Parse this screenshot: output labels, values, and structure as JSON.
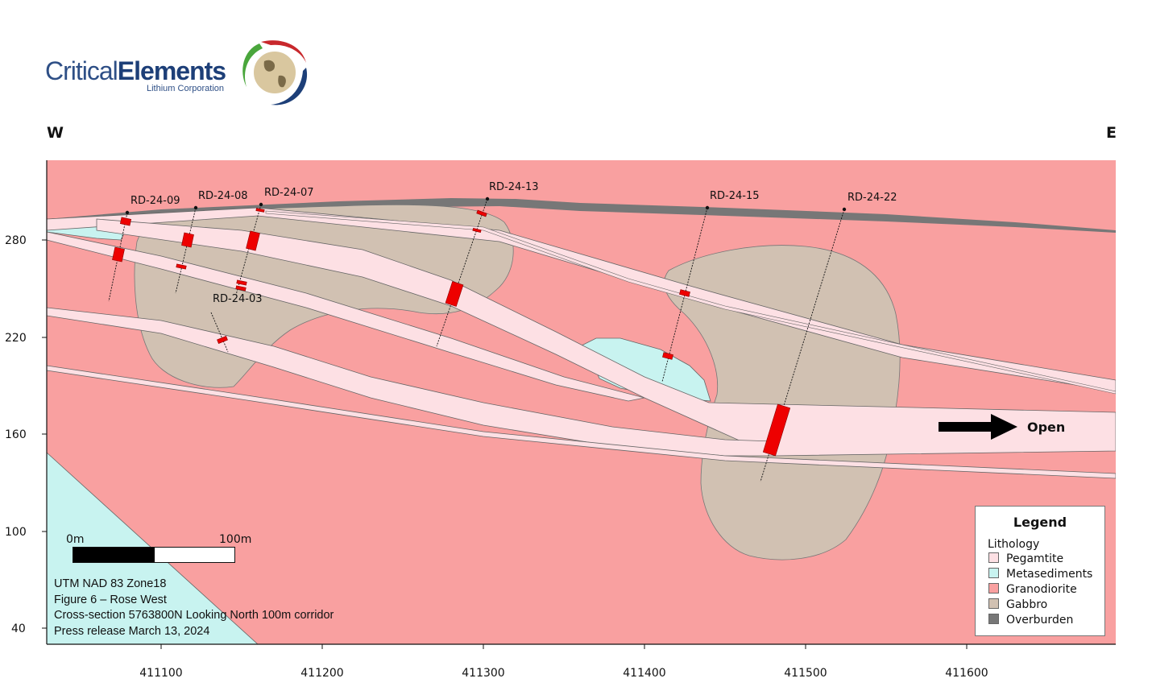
{
  "logo": {
    "word_regular": "Critical",
    "word_bold": "Elements",
    "subtitle": "Lithium Corporation"
  },
  "orientation": {
    "west": "W",
    "east": "E"
  },
  "y_axis": {
    "ticks": [
      "280",
      "220",
      "160",
      "100",
      "40"
    ]
  },
  "x_axis": {
    "ticks": [
      "411100",
      "411200",
      "411300",
      "411400",
      "411500",
      "411600"
    ]
  },
  "drillholes": [
    {
      "id": "RD-24-09"
    },
    {
      "id": "RD-24-08"
    },
    {
      "id": "RD-24-07"
    },
    {
      "id": "RD-24-13"
    },
    {
      "id": "RD-24-15"
    },
    {
      "id": "RD-24-22"
    },
    {
      "id": "RD-24-03"
    }
  ],
  "open_label": "Open",
  "scale_bar": {
    "start": "0m",
    "end": "100m"
  },
  "legend": {
    "title": "Legend",
    "subtitle": "Lithology",
    "items": [
      {
        "label": "Pegamtite",
        "color": "#fde0e4"
      },
      {
        "label": "Metasediments",
        "color": "#c8f3f0"
      },
      {
        "label": "Granodiorite",
        "color": "#f9a0a0"
      },
      {
        "label": "Gabbro",
        "color": "#d1c1b2"
      },
      {
        "label": "Overburden",
        "color": "#777777"
      }
    ]
  },
  "notes": [
    "UTM NAD 83 Zone18",
    "Figure 6 – Rose West",
    "Cross-section 5763800N Looking North 100m corridor",
    "Press release March 13, 2024"
  ],
  "colors": {
    "pegmatite": "#fde0e4",
    "metasediments": "#c8f3f0",
    "granodiorite": "#f9a0a0",
    "gabbro": "#d1c1b2",
    "overburden": "#777777",
    "intercept": "#ee0000"
  }
}
